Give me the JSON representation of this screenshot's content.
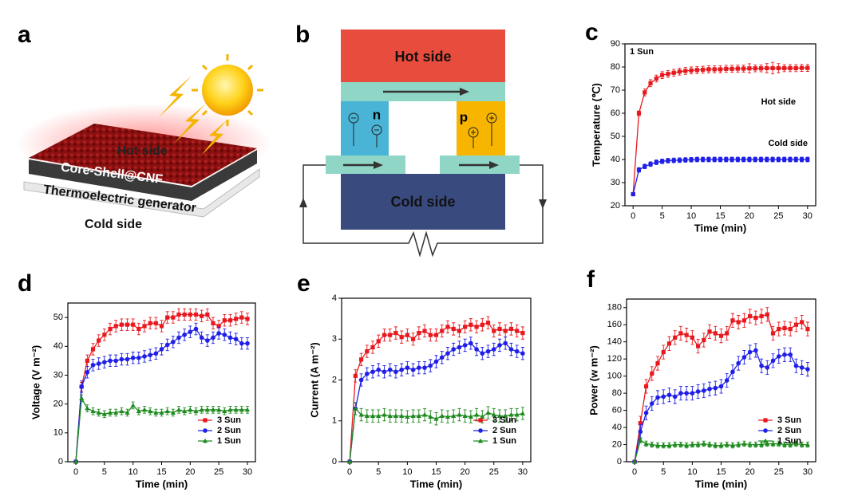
{
  "panel_labels": [
    "a",
    "b",
    "c",
    "d",
    "e",
    "f"
  ],
  "illustration": {
    "hot": "Hot side",
    "layer": "Core-Shell@CNF",
    "generator": "Thermoelectric generator",
    "cold": "Cold side"
  },
  "diagram": {
    "hot": "Hot side",
    "cold": "Cold side",
    "n": "n",
    "p": "p"
  },
  "chart_data": [
    {
      "type": "line",
      "x_label": "Time (min)",
      "y_label": "Temperature (℃)",
      "annotation": "1 Sun",
      "legend": false,
      "x": [
        0,
        1,
        2,
        3,
        4,
        5,
        6,
        7,
        8,
        9,
        10,
        11,
        12,
        13,
        14,
        15,
        16,
        17,
        18,
        19,
        20,
        21,
        22,
        23,
        24,
        25,
        26,
        27,
        28,
        29,
        30
      ],
      "xlim": [
        -1.4,
        31.4
      ],
      "xticks": [
        0,
        5,
        10,
        15,
        20,
        25,
        30
      ],
      "ylim": [
        20,
        90
      ],
      "yticks": [
        20,
        30,
        40,
        50,
        60,
        70,
        80,
        90
      ],
      "series": [
        {
          "name": "Hot side",
          "color": "#e8191e",
          "marker": "square",
          "values": [
            25,
            60,
            69,
            73,
            75,
            76.5,
            77,
            77.5,
            78,
            78.3,
            78.5,
            78.7,
            78.8,
            79,
            79,
            79,
            79.2,
            79.2,
            79.3,
            79.3,
            79.4,
            79.4,
            79.4,
            79.5,
            79.5,
            79.5,
            79.5,
            79.5,
            79.5,
            79.6,
            79.6
          ],
          "errors": [
            0.5,
            1,
            1.5,
            1.5,
            1.5,
            1.5,
            1.5,
            1.5,
            1.5,
            1.5,
            1.5,
            1.5,
            1.5,
            1.5,
            1.5,
            1.5,
            1.5,
            1.5,
            1.5,
            1.5,
            2,
            1.5,
            1.5,
            2,
            2.5,
            2,
            1.5,
            1.5,
            1.5,
            1.5,
            1.5
          ]
        },
        {
          "name": "Cold side",
          "color": "#1f1fe8",
          "marker": "square",
          "values": [
            25,
            35.5,
            37,
            38,
            38.8,
            39.2,
            39.5,
            39.6,
            39.7,
            39.8,
            39.9,
            40,
            40,
            40,
            40,
            40,
            40,
            40,
            40,
            40,
            40,
            40,
            40,
            40,
            40,
            40,
            40,
            40,
            40,
            40,
            40
          ],
          "errors": [
            0.5,
            1,
            1,
            1,
            1,
            1,
            1,
            1,
            1,
            1,
            1,
            1,
            1,
            1,
            1,
            1,
            1,
            1,
            1,
            1,
            1,
            1,
            1,
            1,
            1,
            1,
            1,
            1,
            1,
            1,
            1
          ]
        }
      ]
    },
    {
      "type": "line",
      "x_label": "Time (min)",
      "y_label": "Voltage (V m⁻²)",
      "legend": "lower right",
      "x": [
        0,
        1,
        2,
        3,
        4,
        5,
        6,
        7,
        8,
        9,
        10,
        11,
        12,
        13,
        14,
        15,
        16,
        17,
        18,
        19,
        20,
        21,
        22,
        23,
        24,
        25,
        26,
        27,
        28,
        29,
        30
      ],
      "xlim": [
        -1.4,
        31.4
      ],
      "xticks": [
        0,
        5,
        10,
        15,
        20,
        25,
        30
      ],
      "ylim": [
        0,
        55
      ],
      "yticks": [
        0,
        10,
        20,
        30,
        40,
        50
      ],
      "series": [
        {
          "name": "3 Sun",
          "color": "#e8191e",
          "marker": "square",
          "values": [
            0,
            26,
            35,
            39,
            42,
            44,
            46,
            47,
            47.5,
            47.5,
            47.5,
            46,
            47,
            48,
            48,
            47,
            50,
            50,
            51,
            51,
            51,
            51,
            50.5,
            51,
            48,
            47,
            49,
            49,
            49.5,
            50,
            49.5
          ],
          "errors": [
            0,
            1.5,
            2,
            2,
            2,
            2,
            2,
            2,
            2,
            2,
            2,
            2,
            2,
            2,
            2,
            2,
            2,
            2,
            2,
            2,
            2,
            2,
            2,
            2,
            2,
            2,
            2,
            2,
            2,
            2,
            2
          ]
        },
        {
          "name": "2 Sun",
          "color": "#1f1fe8",
          "marker": "circle",
          "values": [
            0,
            26,
            31,
            33.5,
            34,
            34.5,
            35,
            35,
            35.5,
            35.5,
            36,
            36,
            36.5,
            37,
            37.5,
            39,
            40.5,
            41.5,
            43,
            44,
            45,
            46,
            43,
            42,
            43,
            44.5,
            44,
            43,
            42.5,
            41,
            41
          ],
          "errors": [
            0,
            2,
            2,
            2,
            2,
            2,
            2,
            2,
            2,
            2,
            2,
            2,
            2,
            2,
            2,
            2,
            2,
            2,
            2,
            2,
            2,
            2,
            2,
            2,
            2,
            2,
            2,
            2,
            2,
            2,
            2
          ]
        },
        {
          "name": "1 Sun",
          "color": "#1d8a1d",
          "marker": "triangle",
          "values": [
            0,
            22,
            18.5,
            17.5,
            17,
            16.5,
            17,
            17,
            17.5,
            17,
            19.5,
            17.5,
            18,
            17.5,
            17,
            17,
            17.5,
            17,
            18,
            17.5,
            18,
            17.5,
            18,
            18,
            18,
            18,
            17.5,
            18,
            18,
            18,
            18
          ],
          "errors": [
            0,
            1.2,
            1.2,
            1.2,
            1.2,
            1.2,
            1.2,
            1.2,
            1.2,
            1.2,
            1.2,
            1.2,
            1.2,
            1.2,
            1.2,
            1.2,
            1.2,
            1.2,
            1.2,
            1.2,
            1.2,
            1.2,
            1.2,
            1.2,
            1.2,
            1.2,
            1.2,
            1.2,
            1.2,
            1.2,
            1.2
          ]
        }
      ]
    },
    {
      "type": "line",
      "x_label": "Time (min)",
      "y_label": "Current (A m⁻²)",
      "legend": "lower right",
      "x": [
        0,
        1,
        2,
        3,
        4,
        5,
        6,
        7,
        8,
        9,
        10,
        11,
        12,
        13,
        14,
        15,
        16,
        17,
        18,
        19,
        20,
        21,
        22,
        23,
        24,
        25,
        26,
        27,
        28,
        29,
        30
      ],
      "xlim": [
        -1.4,
        31.4
      ],
      "xticks": [
        0,
        5,
        10,
        15,
        20,
        25,
        30
      ],
      "ylim": [
        0,
        4
      ],
      "yticks": [
        0,
        1,
        2,
        3,
        4
      ],
      "series": [
        {
          "name": "3 Sun",
          "color": "#e8191e",
          "marker": "square",
          "values": [
            0,
            2.1,
            2.5,
            2.7,
            2.8,
            2.95,
            3.1,
            3.1,
            3.15,
            3.05,
            3.1,
            3.0,
            3.15,
            3.2,
            3.1,
            3.1,
            3.2,
            3.3,
            3.25,
            3.2,
            3.3,
            3.35,
            3.3,
            3.35,
            3.4,
            3.2,
            3.25,
            3.2,
            3.25,
            3.2,
            3.15
          ],
          "errors": [
            0,
            0.15,
            0.15,
            0.15,
            0.15,
            0.15,
            0.15,
            0.15,
            0.15,
            0.15,
            0.15,
            0.15,
            0.15,
            0.15,
            0.15,
            0.15,
            0.15,
            0.15,
            0.15,
            0.15,
            0.15,
            0.15,
            0.15,
            0.15,
            0.15,
            0.15,
            0.15,
            0.15,
            0.15,
            0.15,
            0.15
          ]
        },
        {
          "name": "2 Sun",
          "color": "#1f1fe8",
          "marker": "circle",
          "values": [
            0,
            1.3,
            2.0,
            2.15,
            2.2,
            2.25,
            2.2,
            2.25,
            2.2,
            2.25,
            2.3,
            2.25,
            2.3,
            2.3,
            2.35,
            2.45,
            2.55,
            2.65,
            2.75,
            2.8,
            2.85,
            2.9,
            2.75,
            2.65,
            2.7,
            2.75,
            2.85,
            2.9,
            2.75,
            2.7,
            2.65
          ],
          "errors": [
            0,
            0.15,
            0.15,
            0.15,
            0.15,
            0.15,
            0.15,
            0.15,
            0.15,
            0.15,
            0.15,
            0.15,
            0.15,
            0.15,
            0.15,
            0.15,
            0.15,
            0.15,
            0.15,
            0.15,
            0.15,
            0.15,
            0.15,
            0.15,
            0.15,
            0.15,
            0.15,
            0.15,
            0.15,
            0.15,
            0.15
          ]
        },
        {
          "name": "1 Sun",
          "color": "#1d8a1d",
          "marker": "triangle",
          "values": [
            0,
            1.3,
            1.15,
            1.12,
            1.12,
            1.12,
            1.15,
            1.12,
            1.12,
            1.12,
            1.1,
            1.12,
            1.12,
            1.15,
            1.1,
            1.05,
            1.12,
            1.1,
            1.12,
            1.15,
            1.12,
            1.1,
            1.15,
            1.1,
            1.2,
            1.15,
            1.12,
            1.12,
            1.15,
            1.15,
            1.18
          ],
          "errors": [
            0,
            0.15,
            0.15,
            0.15,
            0.15,
            0.15,
            0.15,
            0.15,
            0.15,
            0.15,
            0.15,
            0.15,
            0.15,
            0.15,
            0.15,
            0.15,
            0.15,
            0.15,
            0.15,
            0.15,
            0.15,
            0.15,
            0.15,
            0.15,
            0.15,
            0.15,
            0.15,
            0.15,
            0.15,
            0.15,
            0.15
          ]
        }
      ]
    },
    {
      "type": "line",
      "x_label": "Time (min)",
      "y_label": "Power (w m⁻²)",
      "legend": "lower right",
      "x": [
        0,
        1,
        2,
        3,
        4,
        5,
        6,
        7,
        8,
        9,
        10,
        11,
        12,
        13,
        14,
        15,
        16,
        17,
        18,
        19,
        20,
        21,
        22,
        23,
        24,
        25,
        26,
        27,
        28,
        29,
        30
      ],
      "xlim": [
        -1.4,
        31.4
      ],
      "xticks": [
        0,
        5,
        10,
        15,
        20,
        25,
        30
      ],
      "ylim": [
        0,
        190
      ],
      "yticks": [
        0,
        20,
        40,
        60,
        80,
        100,
        120,
        140,
        160,
        180
      ],
      "series": [
        {
          "name": "3 Sun",
          "color": "#e8191e",
          "marker": "square",
          "values": [
            0,
            45,
            88,
            103,
            115,
            128,
            138,
            145,
            150,
            148,
            145,
            135,
            142,
            152,
            150,
            147,
            150,
            165,
            163,
            165,
            170,
            168,
            170,
            172,
            150,
            155,
            156,
            155,
            160,
            163,
            155
          ],
          "errors": [
            0,
            8,
            8,
            8,
            8,
            8,
            8,
            8,
            8,
            8,
            8,
            8,
            8,
            8,
            8,
            8,
            8,
            8,
            8,
            8,
            8,
            8,
            8,
            8,
            8,
            8,
            8,
            8,
            8,
            8,
            8
          ]
        },
        {
          "name": "2 Sun",
          "color": "#1f1fe8",
          "marker": "circle",
          "values": [
            0,
            35,
            57,
            68,
            75,
            76,
            78,
            76,
            80,
            80,
            80,
            82,
            83,
            85,
            86,
            88,
            95,
            105,
            115,
            122,
            128,
            130,
            112,
            110,
            118,
            123,
            125,
            125,
            112,
            110,
            108
          ],
          "errors": [
            0,
            8,
            8,
            8,
            8,
            8,
            8,
            8,
            8,
            8,
            8,
            8,
            8,
            8,
            8,
            8,
            8,
            8,
            8,
            8,
            8,
            8,
            8,
            8,
            8,
            8,
            8,
            8,
            8,
            8,
            8
          ]
        },
        {
          "name": "1 Sun",
          "color": "#1d8a1d",
          "marker": "triangle",
          "values": [
            0,
            25,
            21,
            20,
            19,
            19,
            19,
            20,
            20,
            19,
            20,
            20,
            21,
            20,
            19,
            19,
            20,
            19,
            20,
            21,
            20,
            20,
            20,
            21,
            21,
            21,
            20,
            20,
            21,
            20,
            20
          ],
          "errors": [
            0,
            3,
            3,
            3,
            3,
            3,
            3,
            3,
            3,
            3,
            3,
            3,
            3,
            3,
            3,
            3,
            3,
            3,
            3,
            3,
            3,
            3,
            3,
            3,
            3,
            3,
            3,
            3,
            3,
            3,
            3
          ]
        }
      ]
    }
  ]
}
